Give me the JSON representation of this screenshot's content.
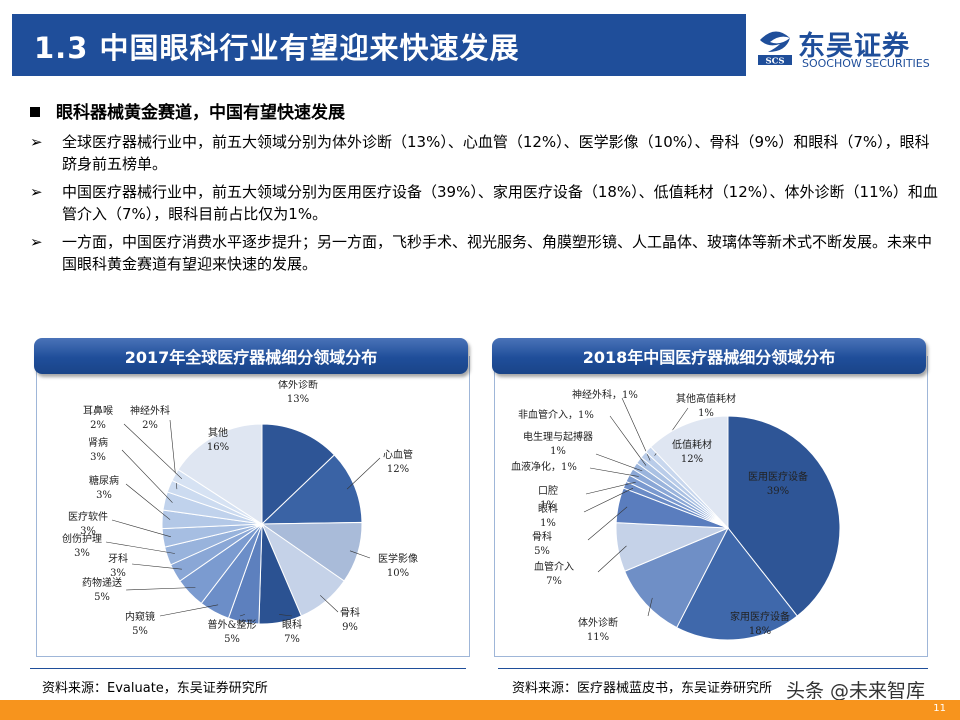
{
  "header": {
    "title": "1.3 中国眼科行业有望迎来快速发展"
  },
  "logo": {
    "cn": "东吴证券",
    "en": "SOOCHOW SECURITIES",
    "mark": "SCS"
  },
  "section_title": "眼科器械黄金赛道，中国有望快速发展",
  "bullets": [
    "全球医疗器械行业中，前五大领域分别为体外诊断（13%）、心血管（12%）、医学影像（10%）、骨科（9%）和眼科（7%），眼科跻身前五榜单。",
    "中国医疗器械行业中，前五大领域分别为医用医疗设备（39%）、家用医疗设备（18%）、低值耗材（12%）、体外诊断（11%）和血管介入（7%），眼科目前占比仅为1%。",
    "一方面，中国医疗消费水平逐步提升；另一方面，飞秒手术、视光服务、角膜塑形镜、人工晶体、玻璃体等新术式不断发展。未来中国眼科黄金赛道有望迎来快速的发展。"
  ],
  "bullet_symbol": "➢",
  "left_panel": {
    "title": "2017年全球医疗器械细分领域分布",
    "source": "资料来源：Evaluate，东吴证券研究所"
  },
  "right_panel": {
    "title": "2018年中国医疗器械细分领域分布",
    "source": "资料来源：医疗器械蓝皮书，东吴证券研究所"
  },
  "chart_data": [
    {
      "type": "pie",
      "title": "2017年全球医疗器械细分领域分布",
      "slices": [
        {
          "name": "体外诊断",
          "value": 13,
          "label": "13%",
          "color": "#2e5596"
        },
        {
          "name": "心血管",
          "value": 12,
          "label": "12%",
          "color": "#3a63a5"
        },
        {
          "name": "医学影像",
          "value": 10,
          "label": "10%",
          "color": "#a9bbd9"
        },
        {
          "name": "骨科",
          "value": 9,
          "label": "9%",
          "color": "#c5d2e8"
        },
        {
          "name": "眼科",
          "value": 7,
          "label": "7%",
          "color": "#2b5292"
        },
        {
          "name": "普外&整形",
          "value": 5,
          "label": "5%",
          "color": "#5d80be"
        },
        {
          "name": "内窥镜",
          "value": 5,
          "label": "5%",
          "color": "#6c8ec8"
        },
        {
          "name": "药物递送",
          "value": 5,
          "label": "5%",
          "color": "#7b9bd0"
        },
        {
          "name": "牙科",
          "value": 3,
          "label": "3%",
          "color": "#8aa7d6"
        },
        {
          "name": "创伤护理",
          "value": 3,
          "label": "3%",
          "color": "#98b3dc"
        },
        {
          "name": "医疗软件",
          "value": 3,
          "label": "3%",
          "color": "#a6bee2"
        },
        {
          "name": "糖尿病",
          "value": 3,
          "label": "3%",
          "color": "#b3c8e7"
        },
        {
          "name": "肾病",
          "value": 3,
          "label": "3%",
          "color": "#c0d2ec"
        },
        {
          "name": "神经外科",
          "value": 2,
          "label": "2%",
          "color": "#ccdbf0"
        },
        {
          "name": "耳鼻喉",
          "value": 2,
          "label": "2%",
          "color": "#d6e2f3"
        },
        {
          "name": "其他",
          "value": 16,
          "label": "16%",
          "color": "#dfe6f2"
        }
      ]
    },
    {
      "type": "pie",
      "title": "2018年中国医疗器械细分领域分布",
      "slices": [
        {
          "name": "医用医疗设备",
          "value": 39,
          "label": "39%",
          "color": "#2e5596"
        },
        {
          "name": "家用医疗设备",
          "value": 18,
          "label": "18%",
          "color": "#3f68ab"
        },
        {
          "name": "体外诊断",
          "value": 11,
          "label": "11%",
          "color": "#6f8fc6"
        },
        {
          "name": "血管介入",
          "value": 7,
          "label": "7%",
          "color": "#c5d2e8"
        },
        {
          "name": "骨科",
          "value": 5,
          "label": "5%",
          "color": "#5a7dbe"
        },
        {
          "name": "眼科",
          "value": 1,
          "label": "1%",
          "color": "#6a8bc6"
        },
        {
          "name": "口腔",
          "value": 1,
          "label": "1%",
          "color": "#7a99cf"
        },
        {
          "name": "血液净化",
          "value": 1,
          "label": "1%",
          "color": "#8aa7d6"
        },
        {
          "name": "电生理与起搏器",
          "value": 1,
          "label": "1%",
          "color": "#9ab4dc"
        },
        {
          "name": "非血管介入",
          "value": 1,
          "label": "1%",
          "color": "#aac1e3"
        },
        {
          "name": "神经外科",
          "value": 1,
          "label": "1%",
          "color": "#b9cce9"
        },
        {
          "name": "其他高值耗材",
          "value": 1,
          "label": "1%",
          "color": "#c8d7ee"
        },
        {
          "name": "低值耗材",
          "value": 12,
          "label": "12%",
          "color": "#dfe6f2"
        }
      ]
    }
  ],
  "watermark": "头条 @未来智库",
  "page_number": "11"
}
